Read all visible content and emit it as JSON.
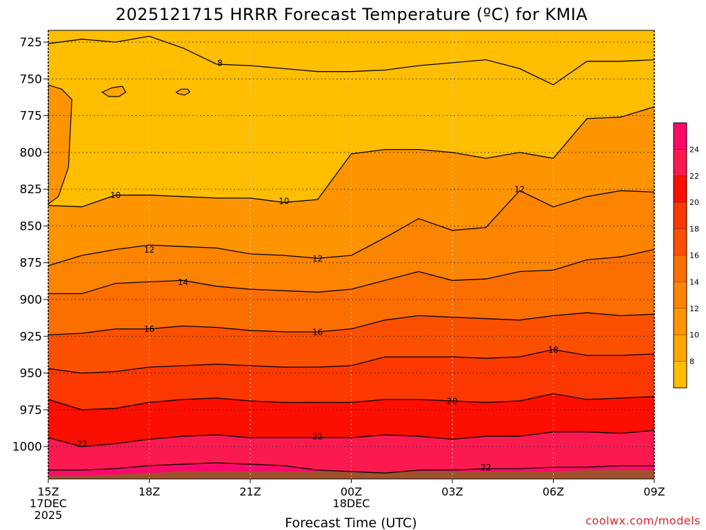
{
  "chart_data": {
    "type": "heatmap",
    "title": "2025121715 HRRR Forecast Temperature (ºC) for KMIA",
    "xlabel": "Forecast Time (UTC)",
    "ylabel": "",
    "credit": "coolwx.com/models",
    "x_range_hours": [
      0,
      18
    ],
    "y_range_hpa": [
      1022,
      717
    ],
    "y_ticks": [
      {
        "value": 725,
        "label": "725"
      },
      {
        "value": 750,
        "label": "750"
      },
      {
        "value": 775,
        "label": "775"
      },
      {
        "value": 800,
        "label": "800"
      },
      {
        "value": 825,
        "label": "825"
      },
      {
        "value": 850,
        "label": "850"
      },
      {
        "value": 875,
        "label": "875"
      },
      {
        "value": 900,
        "label": "900"
      },
      {
        "value": 925,
        "label": "925"
      },
      {
        "value": 950,
        "label": "950"
      },
      {
        "value": 975,
        "label": "975"
      },
      {
        "value": 1000,
        "label": "1000"
      }
    ],
    "x_ticks": [
      {
        "hour": 0,
        "lines": [
          "15Z",
          "17DEC",
          "2025"
        ]
      },
      {
        "hour": 3,
        "lines": [
          "18Z"
        ]
      },
      {
        "hour": 6,
        "lines": [
          "21Z"
        ]
      },
      {
        "hour": 9,
        "lines": [
          "00Z",
          "18DEC"
        ]
      },
      {
        "hour": 12,
        "lines": [
          "03Z"
        ]
      },
      {
        "hour": 15,
        "lines": [
          "06Z"
        ]
      },
      {
        "hour": 18,
        "lines": [
          "09Z"
        ]
      }
    ],
    "colorbar": {
      "levels": [
        6,
        8,
        10,
        12,
        14,
        16,
        18,
        20,
        22,
        24,
        26
      ],
      "colors": [
        "#ffbe00",
        "#ffa600",
        "#fd9400",
        "#fd8400",
        "#fb6e00",
        "#fb5000",
        "#fb3800",
        "#fc0f00",
        "#fb1a50",
        "#fc0a6a"
      ],
      "tick_labels": [
        "8",
        "10",
        "12",
        "14",
        "16",
        "18",
        "20",
        "22",
        "24"
      ]
    },
    "background_color": "#ffa600",
    "ground_color": "#a0522d",
    "series": [
      {
        "name": "8",
        "level": 8,
        "fill": "#ffbe00",
        "hours": [
          0,
          1,
          2,
          3,
          4,
          5,
          6,
          7,
          8,
          9,
          10,
          11,
          12,
          13,
          14,
          15,
          16,
          17,
          18
        ],
        "pressure": [
          726,
          723,
          725,
          721,
          729,
          740,
          741,
          743,
          745,
          745,
          744,
          741,
          739,
          737,
          743,
          754,
          738,
          738,
          737
        ]
      },
      {
        "name": "10",
        "level": 10,
        "fill": "#fd9400",
        "hours": [
          0,
          1,
          2,
          3,
          4,
          5,
          6,
          7,
          8,
          9,
          10,
          11,
          12,
          13,
          14,
          15,
          16,
          17,
          18
        ],
        "pressure": [
          836,
          837,
          829,
          829,
          830,
          831,
          831,
          834,
          832,
          801,
          798,
          798,
          800,
          804,
          800,
          804,
          777,
          776,
          769
        ]
      },
      {
        "name": "12",
        "level": 12,
        "fill": "#fd8400",
        "hours": [
          0,
          1,
          2,
          3,
          4,
          5,
          6,
          7,
          8,
          9,
          10,
          11,
          12,
          13,
          14,
          15,
          16,
          17,
          18
        ],
        "pressure": [
          877,
          870,
          866,
          863,
          864,
          865,
          869,
          870,
          872,
          870,
          858,
          845,
          853,
          851,
          826,
          837,
          830,
          826,
          827
        ]
      },
      {
        "name": "14",
        "level": 14,
        "fill": "#fb6e00",
        "hours": [
          0,
          1,
          2,
          3,
          4,
          5,
          6,
          7,
          8,
          9,
          10,
          11,
          12,
          13,
          14,
          15,
          16,
          17,
          18
        ],
        "pressure": [
          896,
          896,
          889,
          888,
          887,
          891,
          893,
          894,
          895,
          893,
          887,
          881,
          887,
          886,
          881,
          880,
          873,
          871,
          866
        ]
      },
      {
        "name": "16",
        "level": 16,
        "fill": "#fb5000",
        "hours": [
          0,
          1,
          2,
          3,
          4,
          5,
          6,
          7,
          8,
          9,
          10,
          11,
          12,
          13,
          14,
          15,
          16,
          17,
          18
        ],
        "pressure": [
          924,
          923,
          920,
          920,
          918,
          919,
          921,
          922,
          922,
          920,
          914,
          911,
          912,
          913,
          914,
          911,
          909,
          911,
          910
        ]
      },
      {
        "name": "18",
        "level": 18,
        "fill": "#fb3800",
        "hours": [
          0,
          1,
          2,
          3,
          4,
          5,
          6,
          7,
          8,
          9,
          10,
          11,
          12,
          13,
          14,
          15,
          16,
          17,
          18
        ],
        "pressure": [
          947,
          950,
          949,
          946,
          945,
          944,
          945,
          946,
          946,
          945,
          939,
          939,
          939,
          940,
          939,
          934,
          938,
          938,
          937
        ]
      },
      {
        "name": "20",
        "level": 20,
        "fill": "#fc0f00",
        "hours": [
          0,
          1,
          2,
          3,
          4,
          5,
          6,
          7,
          8,
          9,
          10,
          11,
          12,
          13,
          14,
          15,
          16,
          17,
          18
        ],
        "pressure": [
          968,
          975,
          974,
          970,
          968,
          967,
          969,
          970,
          970,
          970,
          968,
          968,
          969,
          970,
          969,
          964,
          968,
          967,
          966
        ]
      },
      {
        "name": "22",
        "level": 22,
        "fill": "#fb1a50",
        "hours": [
          0,
          1,
          2,
          3,
          4,
          5,
          6,
          7,
          8,
          9,
          10,
          11,
          12,
          13,
          14,
          15,
          16,
          17,
          18
        ],
        "pressure": [
          994,
          1000,
          998,
          995,
          993,
          992,
          994,
          994,
          994,
          994,
          992,
          993,
          995,
          993,
          993,
          990,
          990,
          991,
          989
        ]
      },
      {
        "name": "22+",
        "level": 22,
        "fill": "#fc0a6a",
        "hours": [
          0,
          1,
          2,
          3,
          4,
          5,
          6,
          7,
          8,
          9,
          10,
          11,
          12,
          13,
          14,
          15,
          16,
          17,
          18
        ],
        "pressure": [
          1016,
          1016,
          1015,
          1013,
          1012,
          1011,
          1012,
          1013,
          1016,
          1017,
          1018,
          1016,
          1016,
          1015,
          1015,
          1014,
          1014,
          1013,
          1013
        ]
      }
    ],
    "ground": {
      "hours": [
        0,
        1,
        2,
        3,
        4,
        5,
        6,
        7,
        8,
        9,
        10,
        11,
        12,
        13,
        14,
        15,
        16,
        17,
        18
      ],
      "pressure": [
        1020,
        1020,
        1019,
        1018,
        1017,
        1017,
        1017,
        1017,
        1017,
        1017,
        1017,
        1017,
        1017,
        1017,
        1017,
        1017,
        1016,
        1016,
        1016
      ]
    },
    "warm_pockets": [
      {
        "name": "10-left-edge",
        "level": 10,
        "hours": [
          0,
          0.4,
          0.7,
          0.6,
          0.3,
          0
        ],
        "pressure": [
          754,
          757,
          764,
          810,
          830,
          835
        ]
      },
      {
        "name": "8-pocket-a",
        "level": 8,
        "hours": [
          1.6,
          1.9,
          2.2,
          2.3,
          2.1,
          1.8,
          1.6
        ],
        "pressure": [
          759,
          756,
          755,
          759,
          762,
          762,
          759
        ]
      },
      {
        "name": "8-pocket-b",
        "level": 8,
        "hours": [
          3.8,
          3.95,
          4.15,
          4.2,
          4.05,
          3.85,
          3.8
        ],
        "pressure": [
          759,
          757,
          757,
          759,
          761,
          760,
          759
        ]
      }
    ],
    "contour_labels": [
      {
        "text": "8",
        "hour": 5.1,
        "pressure": 739
      },
      {
        "text": "10",
        "hour": 2.0,
        "pressure": 829
      },
      {
        "text": "10",
        "hour": 7.0,
        "pressure": 833
      },
      {
        "text": "12",
        "hour": 3.0,
        "pressure": 866
      },
      {
        "text": "12",
        "hour": 8.0,
        "pressure": 872
      },
      {
        "text": "12",
        "hour": 14.0,
        "pressure": 825
      },
      {
        "text": "14",
        "hour": 4.0,
        "pressure": 888
      },
      {
        "text": "16",
        "hour": 3.0,
        "pressure": 920
      },
      {
        "text": "16",
        "hour": 8.0,
        "pressure": 922
      },
      {
        "text": "18",
        "hour": 15.0,
        "pressure": 934
      },
      {
        "text": "20",
        "hour": 12.0,
        "pressure": 969
      },
      {
        "text": "22",
        "hour": 1.0,
        "pressure": 998
      },
      {
        "text": "22",
        "hour": 8.0,
        "pressure": 993
      },
      {
        "text": "22",
        "hour": 13.0,
        "pressure": 1014
      }
    ]
  }
}
